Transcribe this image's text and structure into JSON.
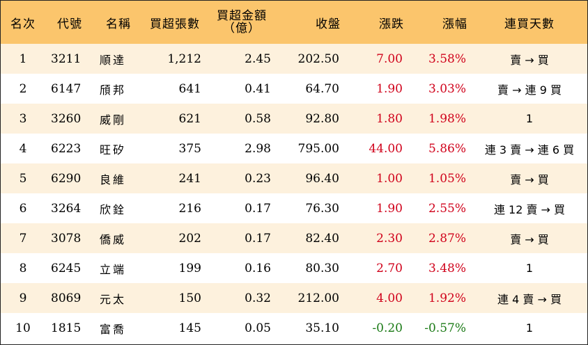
{
  "headers": {
    "rank": "名次",
    "code": "代號",
    "name": "名稱",
    "buy_lots": "買超張數",
    "buy_amount_line1": "買超金額",
    "buy_amount_line2": "（億）",
    "close": "收盤",
    "change": "漲跌",
    "pct": "漲幅",
    "streak": "連買天數"
  },
  "rows": [
    {
      "rank": "1",
      "code": "3211",
      "name": "順達",
      "buy_lots": "1,212",
      "buy_amount": "2.45",
      "close": "202.50",
      "change": "7.00",
      "pct": "3.58%",
      "streak": "賣 → 買",
      "direction": "up"
    },
    {
      "rank": "2",
      "code": "6147",
      "name": "頎邦",
      "buy_lots": "641",
      "buy_amount": "0.41",
      "close": "64.70",
      "change": "1.90",
      "pct": "3.03%",
      "streak": "賣 → 連 9 買",
      "direction": "up"
    },
    {
      "rank": "3",
      "code": "3260",
      "name": "威剛",
      "buy_lots": "621",
      "buy_amount": "0.58",
      "close": "92.80",
      "change": "1.80",
      "pct": "1.98%",
      "streak": "1",
      "direction": "up"
    },
    {
      "rank": "4",
      "code": "6223",
      "name": "旺矽",
      "buy_lots": "375",
      "buy_amount": "2.98",
      "close": "795.00",
      "change": "44.00",
      "pct": "5.86%",
      "streak": "連 3 賣 → 連 6 買",
      "direction": "up"
    },
    {
      "rank": "5",
      "code": "6290",
      "name": "良維",
      "buy_lots": "241",
      "buy_amount": "0.23",
      "close": "96.40",
      "change": "1.00",
      "pct": "1.05%",
      "streak": "賣 → 買",
      "direction": "up"
    },
    {
      "rank": "6",
      "code": "3264",
      "name": "欣銓",
      "buy_lots": "216",
      "buy_amount": "0.17",
      "close": "76.30",
      "change": "1.90",
      "pct": "2.55%",
      "streak": "連 12 賣 → 買",
      "direction": "up"
    },
    {
      "rank": "7",
      "code": "3078",
      "name": "僑威",
      "buy_lots": "202",
      "buy_amount": "0.17",
      "close": "82.40",
      "change": "2.30",
      "pct": "2.87%",
      "streak": "賣 → 買",
      "direction": "up"
    },
    {
      "rank": "8",
      "code": "6245",
      "name": "立端",
      "buy_lots": "199",
      "buy_amount": "0.16",
      "close": "80.30",
      "change": "2.70",
      "pct": "3.48%",
      "streak": "1",
      "direction": "up"
    },
    {
      "rank": "9",
      "code": "8069",
      "name": "元太",
      "buy_lots": "150",
      "buy_amount": "0.32",
      "close": "212.00",
      "change": "4.00",
      "pct": "1.92%",
      "streak": "連 4 賣 → 買",
      "direction": "up"
    },
    {
      "rank": "10",
      "code": "1815",
      "name": "富喬",
      "buy_lots": "145",
      "buy_amount": "0.05",
      "close": "35.10",
      "change": "-0.20",
      "pct": "-0.57%",
      "streak": "1",
      "direction": "down"
    }
  ],
  "colors": {
    "header_bg": "#fbc56c",
    "odd_row_bg": "#fdf1dd",
    "up": "#d0021b",
    "down": "#1b7a16"
  }
}
